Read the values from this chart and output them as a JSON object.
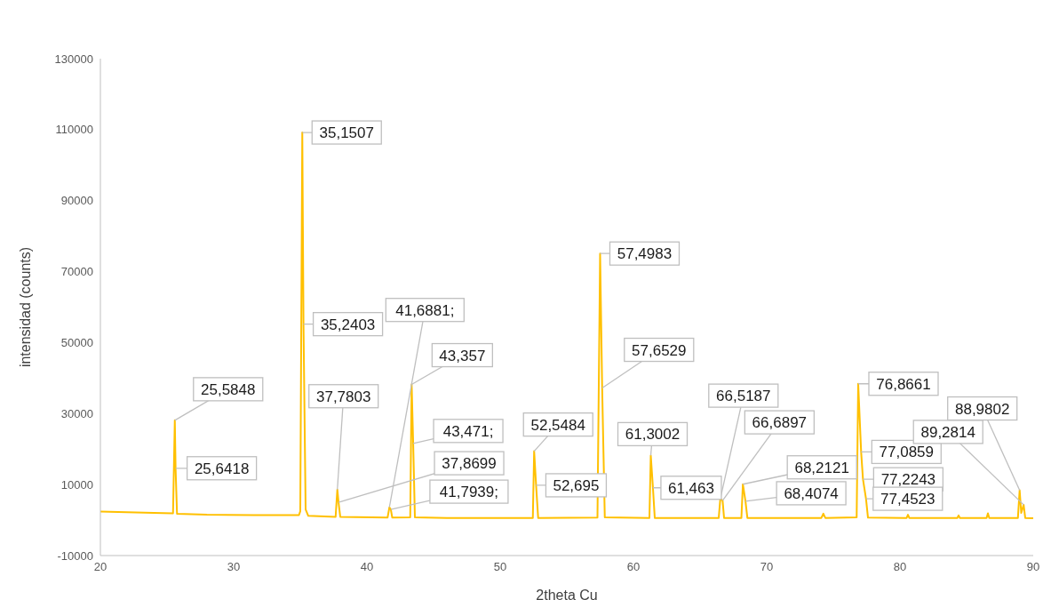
{
  "chart_data": {
    "type": "line",
    "xlabel": "2theta Cu",
    "ylabel": "intensidad (counts)",
    "xlim": [
      20,
      90
    ],
    "xticks": [
      20,
      30,
      40,
      50,
      60,
      70,
      80,
      90
    ],
    "ylim": [
      -10000,
      130000
    ],
    "yticks": [
      -10000,
      10000,
      30000,
      50000,
      70000,
      90000,
      110000,
      130000
    ],
    "x": [
      20,
      22,
      24,
      25.45,
      25.5848,
      25.6418,
      25.75,
      28,
      31.5,
      34.9,
      35.0,
      35.1507,
      35.2403,
      35.4,
      35.6,
      37.65,
      37.7803,
      37.8699,
      38.0,
      41.55,
      41.6881,
      41.7939,
      41.9,
      43.25,
      43.357,
      43.471,
      43.6,
      46,
      52.45,
      52.5484,
      52.695,
      52.85,
      57.3,
      57.4983,
      57.6529,
      57.85,
      61.2,
      61.3002,
      61.463,
      61.6,
      66.4,
      66.5187,
      66.6897,
      66.8,
      68.1,
      68.2121,
      68.4074,
      68.55,
      74.1,
      74.25,
      74.4,
      76.75,
      76.8661,
      77.0859,
      77.2243,
      77.4523,
      77.6,
      80.5,
      80.6,
      80.7,
      84.3,
      84.4,
      84.5,
      86.5,
      86.6,
      86.7,
      88.85,
      88.9802,
      89.1,
      89.2814,
      89.4,
      90
    ],
    "series": [
      {
        "color": "#ffc000",
        "values": [
          2400,
          2200,
          2000,
          1900,
          28100,
          14600,
          1800,
          1500,
          1400,
          1400,
          2500,
          109200,
          55200,
          3000,
          1200,
          900,
          8600,
          5000,
          900,
          700,
          3600,
          3000,
          700,
          800,
          38200,
          21600,
          800,
          600,
          600,
          19400,
          9800,
          600,
          700,
          75100,
          37200,
          800,
          600,
          18200,
          9100,
          600,
          600,
          6000,
          5500,
          600,
          600,
          10100,
          5300,
          600,
          600,
          1800,
          600,
          800,
          38400,
          19200,
          11500,
          6000,
          700,
          600,
          1500,
          600,
          600,
          1300,
          600,
          600,
          1900,
          600,
          600,
          8400,
          2000,
          4300,
          600,
          500
        ]
      }
    ],
    "annotations": [
      {
        "text": "25,5848",
        "x": 25.5848,
        "y": 28100
      },
      {
        "text": "25,6418",
        "x": 25.6418,
        "y": 14600
      },
      {
        "text": "35,1507",
        "x": 35.1507,
        "y": 109200
      },
      {
        "text": "35,2403",
        "x": 35.2403,
        "y": 55200
      },
      {
        "text": "37,7803",
        "x": 37.7803,
        "y": 8600
      },
      {
        "text": "37,8699",
        "x": 37.8699,
        "y": 5000
      },
      {
        "text": "41,6881;",
        "x": 41.6881,
        "y": 3600
      },
      {
        "text": "41,7939;",
        "x": 41.7939,
        "y": 3000
      },
      {
        "text": "43,357",
        "x": 43.357,
        "y": 38200
      },
      {
        "text": "43,471;",
        "x": 43.471,
        "y": 21600
      },
      {
        "text": "52,5484",
        "x": 52.5484,
        "y": 19400
      },
      {
        "text": "52,695",
        "x": 52.695,
        "y": 9800
      },
      {
        "text": "57,4983",
        "x": 57.4983,
        "y": 75100
      },
      {
        "text": "57,6529",
        "x": 57.6529,
        "y": 37200
      },
      {
        "text": "61,3002",
        "x": 61.3002,
        "y": 18200
      },
      {
        "text": "61,463",
        "x": 61.463,
        "y": 9100
      },
      {
        "text": "66,5187",
        "x": 66.5187,
        "y": 6000
      },
      {
        "text": "66,6897",
        "x": 66.6897,
        "y": 5500
      },
      {
        "text": "68,2121",
        "x": 68.2121,
        "y": 10100
      },
      {
        "text": "68,4074",
        "x": 68.4074,
        "y": 5300
      },
      {
        "text": "76,8661",
        "x": 76.8661,
        "y": 38400
      },
      {
        "text": "77,0859",
        "x": 77.0859,
        "y": 19200
      },
      {
        "text": "77,2243",
        "x": 77.2243,
        "y": 11500
      },
      {
        "text": "77,4523",
        "x": 77.4523,
        "y": 6000
      },
      {
        "text": "88,9802",
        "x": 88.9802,
        "y": 8400
      },
      {
        "text": "89,2814",
        "x": 89.2814,
        "y": 4300
      }
    ]
  }
}
